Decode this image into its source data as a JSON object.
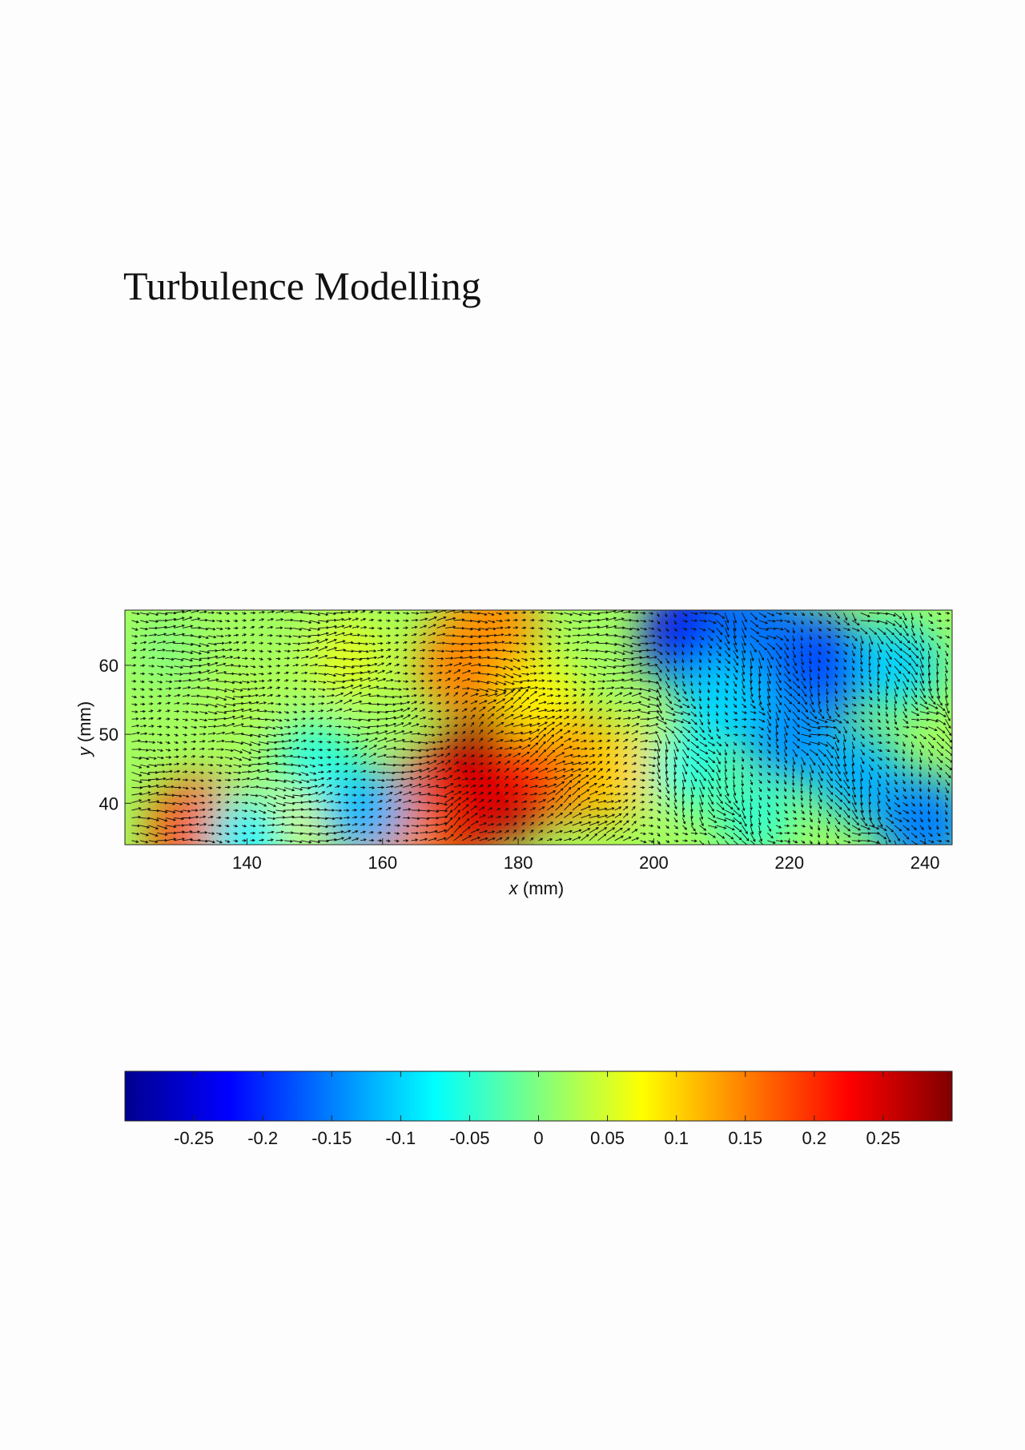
{
  "page": {
    "title": "Turbulence Modelling"
  },
  "chart_data": [
    {
      "type": "heatmap",
      "subtype": "vector-field-over-contour",
      "xlabel": "x (mm)",
      "xlabel_var": "x",
      "xlabel_unit": "(mm)",
      "ylabel": "y (mm)",
      "ylabel_var": "y",
      "ylabel_unit": "(mm)",
      "xlim": [
        122,
        244
      ],
      "ylim": [
        34,
        68
      ],
      "xticks": [
        140,
        160,
        180,
        200,
        220,
        240
      ],
      "yticks": [
        40,
        50,
        60
      ],
      "grid": false,
      "colormap": "jet",
      "clim": [
        -0.3,
        0.3
      ],
      "field_regions": [
        {
          "x": 177,
          "y": 44,
          "value": 0.3
        },
        {
          "x": 185,
          "y": 46,
          "value": 0.22
        },
        {
          "x": 169,
          "y": 39,
          "value": 0.24
        },
        {
          "x": 161,
          "y": 36,
          "value": 0.15
        },
        {
          "x": 192,
          "y": 44,
          "value": 0.14
        },
        {
          "x": 196,
          "y": 45,
          "value": 0.1
        },
        {
          "x": 172,
          "y": 60,
          "value": 0.15
        },
        {
          "x": 176,
          "y": 66,
          "value": 0.14
        },
        {
          "x": 183,
          "y": 55,
          "value": 0.08
        },
        {
          "x": 133,
          "y": 36,
          "value": 0.18
        },
        {
          "x": 150,
          "y": 40,
          "value": 0.07
        },
        {
          "x": 155,
          "y": 61,
          "value": 0.06
        },
        {
          "x": 140,
          "y": 55,
          "value": 0.03
        },
        {
          "x": 157,
          "y": 39,
          "value": -0.12
        },
        {
          "x": 150,
          "y": 46,
          "value": -0.06
        },
        {
          "x": 140,
          "y": 35,
          "value": -0.08
        },
        {
          "x": 207,
          "y": 64,
          "value": -0.23
        },
        {
          "x": 224,
          "y": 60,
          "value": -0.19
        },
        {
          "x": 215,
          "y": 65,
          "value": -0.16
        },
        {
          "x": 220,
          "y": 50,
          "value": -0.14
        },
        {
          "x": 230,
          "y": 44,
          "value": -0.12
        },
        {
          "x": 240,
          "y": 37,
          "value": -0.15
        },
        {
          "x": 210,
          "y": 55,
          "value": -0.1
        },
        {
          "x": 236,
          "y": 60,
          "value": -0.1
        },
        {
          "x": 205,
          "y": 45,
          "value": -0.06
        },
        {
          "x": 215,
          "y": 38,
          "value": -0.05
        },
        {
          "x": 128,
          "y": 62,
          "value": 0.0
        },
        {
          "x": 145,
          "y": 66,
          "value": 0.02
        }
      ]
    },
    {
      "type": "heatmap",
      "subtype": "colorbar",
      "colormap": "jet",
      "clim": [
        -0.3,
        0.3
      ],
      "orientation": "horizontal",
      "ticks": [
        -0.25,
        -0.2,
        -0.15,
        -0.1,
        -0.05,
        0,
        0.05,
        0.1,
        0.15,
        0.2,
        0.25
      ],
      "tick_labels": [
        "-0.25",
        "-0.2",
        "-0.15",
        "-0.1",
        "-0.05",
        "0",
        "0.05",
        "0.1",
        "0.15",
        "0.2",
        "0.25"
      ]
    }
  ]
}
